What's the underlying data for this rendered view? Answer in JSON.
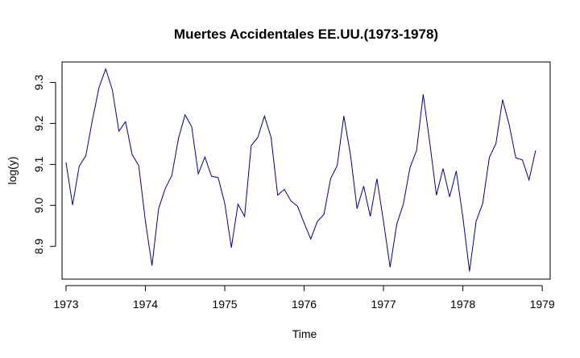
{
  "chart_data": {
    "type": "line",
    "title": "Muertes Accidentales EE.UU.(1973-1978)",
    "xlabel": "Time",
    "ylabel": "log(y)",
    "xlim": [
      1972.95,
      1979.1
    ],
    "ylim": [
      8.82,
      9.35
    ],
    "x_ticks": [
      1973,
      1974,
      1975,
      1976,
      1977,
      1978,
      1979
    ],
    "y_ticks": [
      8.9,
      9.0,
      9.1,
      9.2,
      9.3
    ],
    "x_tick_labels": [
      "1973",
      "1974",
      "1975",
      "1976",
      "1977",
      "1978",
      "1979"
    ],
    "y_tick_labels": [
      "8.9",
      "9.0",
      "9.1",
      "9.2",
      "9.3"
    ],
    "grid": false,
    "line_color": "#00008B",
    "series": [
      {
        "start": 1973,
        "frequency": 12,
        "values": [
          9.105,
          9.001,
          9.096,
          9.121,
          9.209,
          9.288,
          9.333,
          9.282,
          9.181,
          9.204,
          9.124,
          9.097,
          8.962,
          8.853,
          8.992,
          9.041,
          9.073,
          9.163,
          9.221,
          9.192,
          9.077,
          9.118,
          9.071,
          9.068,
          9.005,
          8.897,
          9.003,
          8.973,
          9.146,
          9.166,
          9.218,
          9.166,
          9.025,
          9.039,
          9.011,
          8.998,
          8.957,
          8.918,
          8.961,
          8.978,
          9.065,
          9.097,
          9.218,
          9.124,
          8.992,
          9.047,
          8.973,
          9.065,
          8.961,
          8.849,
          8.954,
          9.003,
          9.092,
          9.134,
          9.271,
          9.152,
          9.025,
          9.09,
          9.021,
          9.084,
          8.971,
          8.839,
          8.961,
          9.005,
          9.117,
          9.151,
          9.258,
          9.197,
          9.116,
          9.111,
          9.062,
          9.134
        ]
      }
    ]
  }
}
